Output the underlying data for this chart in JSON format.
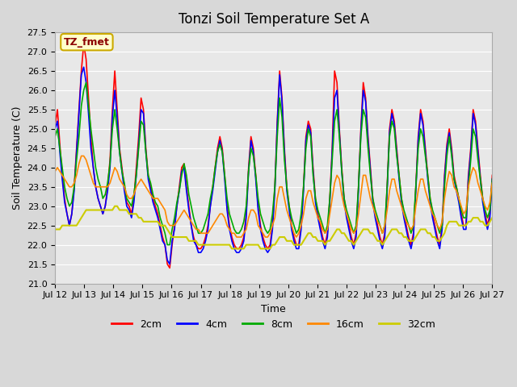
{
  "title": "Tonzi Soil Temperature Set A",
  "xlabel": "Time",
  "ylabel": "Soil Temperature (C)",
  "ylim": [
    21.0,
    27.5
  ],
  "annotation": "TZ_fmet",
  "colors": {
    "2cm": "#ff0000",
    "4cm": "#0000ff",
    "8cm": "#00aa00",
    "16cm": "#ff8800",
    "32cm": "#cccc00"
  },
  "legend_labels": [
    "2cm",
    "4cm",
    "8cm",
    "16cm",
    "32cm"
  ],
  "xtick_labels": [
    "Jul 12",
    "Jul 13",
    "Jul 14",
    "Jul 15",
    "Jul 16",
    "Jul 17",
    "Jul 18",
    "Jul 19",
    "Jul 20",
    "Jul 21",
    "Jul 22",
    "Jul 23",
    "Jul 24",
    "Jul 25",
    "Jul 26",
    "Jul 27"
  ],
  "ytick_values": [
    21.0,
    21.5,
    22.0,
    22.5,
    23.0,
    23.5,
    24.0,
    24.5,
    25.0,
    25.5,
    26.0,
    26.5,
    27.0,
    27.5
  ],
  "data_2cm": [
    25.1,
    25.5,
    24.6,
    23.8,
    23.2,
    22.8,
    22.5,
    22.8,
    23.5,
    24.5,
    25.5,
    26.5,
    27.2,
    26.8,
    25.8,
    24.8,
    24.0,
    23.5,
    23.2,
    23.0,
    22.8,
    23.0,
    23.5,
    24.2,
    25.5,
    26.5,
    25.5,
    24.5,
    24.0,
    23.5,
    23.1,
    23.0,
    22.8,
    23.2,
    24.0,
    24.8,
    25.8,
    25.5,
    24.5,
    23.8,
    23.5,
    23.2,
    23.0,
    22.8,
    22.5,
    22.2,
    22.0,
    21.5,
    21.4,
    22.0,
    22.5,
    23.0,
    23.5,
    24.0,
    24.1,
    23.5,
    23.0,
    22.5,
    22.2,
    22.0,
    21.9,
    21.9,
    22.0,
    22.2,
    22.5,
    23.0,
    23.5,
    24.0,
    24.5,
    24.8,
    24.5,
    23.8,
    23.0,
    22.5,
    22.2,
    22.0,
    21.9,
    21.9,
    22.0,
    22.2,
    22.8,
    24.0,
    24.8,
    24.5,
    23.8,
    23.0,
    22.5,
    22.2,
    22.0,
    21.9,
    22.0,
    22.5,
    23.5,
    25.2,
    26.5,
    25.8,
    24.5,
    23.5,
    23.0,
    22.5,
    22.2,
    22.0,
    22.0,
    22.5,
    23.5,
    24.8,
    25.2,
    25.0,
    24.0,
    23.2,
    22.8,
    22.5,
    22.2,
    22.0,
    22.3,
    23.2,
    24.5,
    26.5,
    26.2,
    25.0,
    24.0,
    23.2,
    22.8,
    22.5,
    22.2,
    22.0,
    22.3,
    23.5,
    25.0,
    26.2,
    25.8,
    24.8,
    24.0,
    23.2,
    22.8,
    22.5,
    22.2,
    22.0,
    22.3,
    23.5,
    25.0,
    25.5,
    25.2,
    24.5,
    23.8,
    23.2,
    22.8,
    22.5,
    22.2,
    22.0,
    22.3,
    23.5,
    24.8,
    25.5,
    25.2,
    24.5,
    23.8,
    23.2,
    22.8,
    22.5,
    22.2,
    22.0,
    22.5,
    23.8,
    24.6,
    25.0,
    24.5,
    23.8,
    23.5,
    23.2,
    22.8,
    22.5,
    22.5,
    23.8,
    24.5,
    25.5,
    25.2,
    24.5,
    23.8,
    23.2,
    22.8,
    22.5,
    22.8,
    23.8
  ],
  "data_4cm": [
    25.0,
    25.2,
    24.4,
    23.7,
    23.1,
    22.8,
    22.5,
    22.8,
    23.4,
    24.4,
    25.4,
    26.4,
    26.6,
    26.2,
    25.4,
    24.5,
    24.0,
    23.5,
    23.2,
    23.0,
    22.8,
    23.0,
    23.4,
    24.0,
    25.3,
    26.0,
    25.3,
    24.4,
    23.9,
    23.4,
    23.0,
    22.9,
    22.7,
    23.1,
    23.8,
    24.6,
    25.5,
    25.4,
    24.4,
    23.7,
    23.4,
    23.1,
    22.9,
    22.7,
    22.4,
    22.1,
    22.0,
    21.6,
    21.5,
    22.1,
    22.4,
    23.0,
    23.4,
    23.9,
    24.0,
    23.4,
    22.9,
    22.5,
    22.1,
    22.0,
    21.8,
    21.8,
    21.9,
    22.1,
    22.4,
    23.0,
    23.4,
    23.9,
    24.4,
    24.7,
    24.4,
    23.7,
    22.9,
    22.4,
    22.1,
    21.9,
    21.8,
    21.8,
    21.9,
    22.1,
    22.7,
    23.9,
    24.7,
    24.4,
    23.7,
    22.9,
    22.4,
    22.1,
    21.9,
    21.8,
    21.9,
    22.4,
    23.4,
    25.1,
    26.4,
    25.7,
    24.4,
    23.4,
    22.9,
    22.4,
    22.1,
    21.9,
    21.9,
    22.4,
    23.4,
    24.7,
    25.1,
    24.9,
    23.9,
    23.1,
    22.7,
    22.4,
    22.1,
    21.9,
    22.2,
    23.1,
    24.4,
    25.8,
    26.0,
    24.9,
    23.9,
    23.1,
    22.7,
    22.4,
    22.1,
    21.9,
    22.2,
    23.4,
    24.9,
    26.0,
    25.7,
    24.7,
    23.9,
    23.1,
    22.7,
    22.4,
    22.1,
    21.9,
    22.2,
    23.4,
    24.9,
    25.4,
    25.1,
    24.4,
    23.7,
    23.1,
    22.7,
    22.4,
    22.1,
    21.9,
    22.2,
    23.4,
    24.7,
    25.4,
    25.1,
    24.4,
    23.7,
    23.1,
    22.7,
    22.4,
    22.1,
    21.9,
    22.4,
    23.7,
    24.5,
    24.9,
    24.4,
    23.7,
    23.4,
    23.1,
    22.7,
    22.4,
    22.4,
    23.7,
    24.4,
    25.4,
    25.1,
    24.4,
    23.7,
    23.1,
    22.7,
    22.4,
    22.7,
    23.7
  ],
  "data_8cm": [
    24.8,
    25.0,
    24.5,
    24.0,
    23.5,
    23.2,
    23.0,
    23.1,
    23.5,
    24.2,
    24.8,
    25.6,
    26.0,
    26.2,
    25.6,
    25.0,
    24.5,
    24.0,
    23.7,
    23.5,
    23.2,
    23.3,
    23.6,
    24.1,
    25.0,
    25.5,
    25.0,
    24.4,
    23.9,
    23.6,
    23.2,
    23.1,
    23.0,
    23.3,
    23.8,
    24.5,
    25.2,
    25.1,
    24.4,
    23.8,
    23.6,
    23.3,
    23.1,
    23.0,
    22.7,
    22.5,
    22.3,
    22.0,
    22.0,
    22.4,
    22.7,
    23.1,
    23.4,
    23.8,
    24.1,
    23.8,
    23.3,
    23.0,
    22.7,
    22.5,
    22.3,
    22.3,
    22.4,
    22.6,
    22.8,
    23.2,
    23.5,
    24.0,
    24.4,
    24.6,
    24.4,
    23.8,
    23.2,
    22.8,
    22.6,
    22.4,
    22.3,
    22.3,
    22.4,
    22.6,
    23.0,
    23.9,
    24.5,
    24.3,
    23.8,
    23.2,
    22.8,
    22.6,
    22.4,
    22.3,
    22.4,
    22.8,
    23.5,
    24.8,
    25.8,
    25.3,
    24.2,
    23.5,
    23.0,
    22.7,
    22.5,
    22.3,
    22.4,
    22.8,
    23.5,
    24.5,
    25.0,
    24.8,
    23.8,
    23.2,
    22.9,
    22.7,
    22.5,
    22.3,
    22.5,
    23.2,
    24.2,
    25.2,
    25.5,
    24.8,
    23.9,
    23.2,
    22.9,
    22.7,
    22.5,
    22.3,
    22.5,
    23.5,
    24.8,
    25.5,
    25.3,
    24.5,
    23.8,
    23.2,
    22.9,
    22.7,
    22.5,
    22.3,
    22.5,
    23.5,
    24.8,
    25.2,
    25.0,
    24.3,
    23.8,
    23.2,
    22.9,
    22.7,
    22.5,
    22.3,
    22.5,
    23.5,
    24.5,
    25.0,
    24.8,
    24.3,
    23.8,
    23.2,
    22.9,
    22.7,
    22.5,
    22.3,
    22.5,
    23.5,
    24.3,
    24.8,
    24.3,
    23.7,
    23.5,
    23.2,
    22.9,
    22.7,
    22.7,
    23.5,
    24.2,
    25.0,
    24.8,
    24.2,
    23.7,
    23.2,
    22.9,
    22.7,
    22.9,
    23.7
  ],
  "data_16cm": [
    23.9,
    24.0,
    23.9,
    23.8,
    23.7,
    23.6,
    23.5,
    23.5,
    23.6,
    23.8,
    24.1,
    24.3,
    24.3,
    24.2,
    24.0,
    23.8,
    23.6,
    23.5,
    23.5,
    23.5,
    23.5,
    23.5,
    23.5,
    23.6,
    23.8,
    24.0,
    23.9,
    23.7,
    23.6,
    23.5,
    23.3,
    23.2,
    23.2,
    23.3,
    23.5,
    23.6,
    23.7,
    23.6,
    23.5,
    23.4,
    23.3,
    23.2,
    23.2,
    23.2,
    23.1,
    23.0,
    22.9,
    22.6,
    22.5,
    22.5,
    22.5,
    22.6,
    22.7,
    22.8,
    22.9,
    22.8,
    22.7,
    22.6,
    22.5,
    22.4,
    22.4,
    22.3,
    22.3,
    22.3,
    22.3,
    22.4,
    22.5,
    22.6,
    22.7,
    22.8,
    22.8,
    22.7,
    22.5,
    22.4,
    22.3,
    22.3,
    22.2,
    22.2,
    22.2,
    22.3,
    22.4,
    22.7,
    22.9,
    22.9,
    22.8,
    22.5,
    22.4,
    22.3,
    22.2,
    22.2,
    22.3,
    22.5,
    22.7,
    23.2,
    23.5,
    23.5,
    23.2,
    22.9,
    22.7,
    22.5,
    22.3,
    22.2,
    22.3,
    22.5,
    22.8,
    23.2,
    23.4,
    23.4,
    23.1,
    22.9,
    22.7,
    22.6,
    22.4,
    22.3,
    22.4,
    22.8,
    23.2,
    23.6,
    23.8,
    23.7,
    23.3,
    23.0,
    22.8,
    22.6,
    22.4,
    22.3,
    22.4,
    22.8,
    23.3,
    23.8,
    23.8,
    23.5,
    23.2,
    23.0,
    22.8,
    22.6,
    22.5,
    22.3,
    22.5,
    22.9,
    23.4,
    23.7,
    23.7,
    23.4,
    23.2,
    23.0,
    22.8,
    22.6,
    22.5,
    22.4,
    22.5,
    23.0,
    23.4,
    23.7,
    23.7,
    23.4,
    23.2,
    23.0,
    22.8,
    22.7,
    22.5,
    22.4,
    22.6,
    23.2,
    23.6,
    23.9,
    23.8,
    23.5,
    23.4,
    23.2,
    23.0,
    22.8,
    22.9,
    23.5,
    23.8,
    24.0,
    23.9,
    23.6,
    23.4,
    23.2,
    23.0,
    22.9,
    23.1,
    23.6
  ],
  "data_32cm": [
    22.4,
    22.4,
    22.4,
    22.5,
    22.5,
    22.5,
    22.5,
    22.5,
    22.5,
    22.5,
    22.6,
    22.7,
    22.8,
    22.9,
    22.9,
    22.9,
    22.9,
    22.9,
    22.9,
    22.9,
    22.9,
    22.9,
    22.9,
    22.9,
    22.9,
    23.0,
    23.0,
    22.9,
    22.9,
    22.9,
    22.9,
    22.8,
    22.8,
    22.8,
    22.8,
    22.7,
    22.7,
    22.6,
    22.6,
    22.6,
    22.6,
    22.6,
    22.6,
    22.6,
    22.5,
    22.5,
    22.5,
    22.4,
    22.3,
    22.2,
    22.2,
    22.2,
    22.2,
    22.2,
    22.2,
    22.2,
    22.1,
    22.1,
    22.1,
    22.1,
    22.0,
    22.0,
    22.0,
    22.0,
    22.0,
    22.0,
    22.0,
    22.0,
    22.0,
    22.0,
    22.0,
    22.0,
    22.0,
    22.0,
    21.9,
    21.9,
    21.9,
    21.9,
    21.9,
    21.9,
    22.0,
    22.0,
    22.0,
    22.0,
    22.0,
    22.0,
    21.9,
    21.9,
    21.9,
    21.9,
    21.9,
    22.0,
    22.0,
    22.1,
    22.2,
    22.2,
    22.2,
    22.1,
    22.1,
    22.1,
    22.0,
    22.0,
    22.0,
    22.0,
    22.1,
    22.2,
    22.3,
    22.3,
    22.2,
    22.2,
    22.1,
    22.1,
    22.1,
    22.0,
    22.1,
    22.1,
    22.2,
    22.3,
    22.4,
    22.4,
    22.3,
    22.3,
    22.2,
    22.1,
    22.1,
    22.0,
    22.1,
    22.2,
    22.3,
    22.4,
    22.4,
    22.4,
    22.3,
    22.3,
    22.2,
    22.1,
    22.1,
    22.0,
    22.1,
    22.2,
    22.3,
    22.4,
    22.4,
    22.4,
    22.3,
    22.3,
    22.2,
    22.2,
    22.1,
    22.1,
    22.1,
    22.2,
    22.3,
    22.4,
    22.4,
    22.4,
    22.3,
    22.3,
    22.2,
    22.2,
    22.1,
    22.1,
    22.2,
    22.3,
    22.5,
    22.6,
    22.6,
    22.6,
    22.6,
    22.5,
    22.5,
    22.5,
    22.5,
    22.6,
    22.6,
    22.7,
    22.7,
    22.7,
    22.6,
    22.6,
    22.5,
    22.5,
    22.6,
    22.7
  ]
}
